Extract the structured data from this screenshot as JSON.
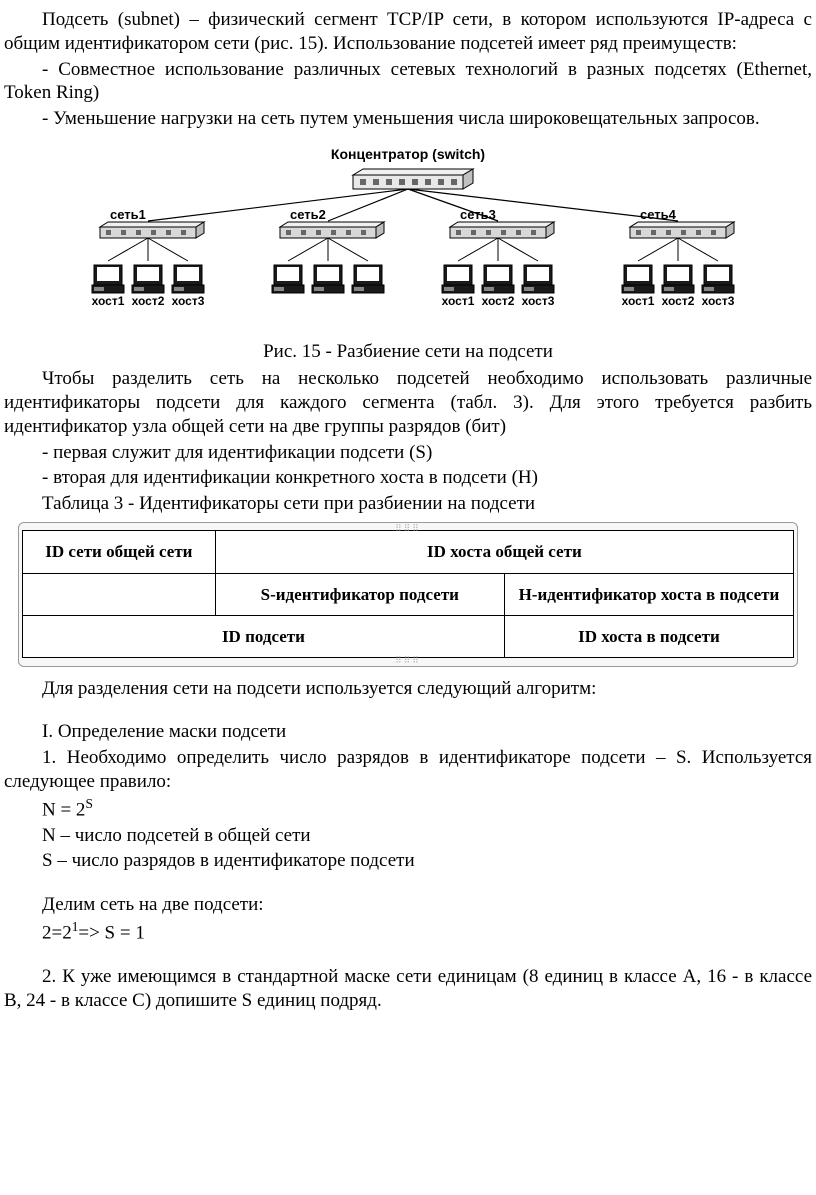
{
  "p1": "Подсеть (subnet) – физический сегмент TCP/IP сети, в котором используются IP-адреса с общим идентификатором сети (рис. 15). Использование подсетей имеет ряд преимуществ:",
  "b1": "- Совместное использование различных сетевых технологий в разных подсетях (Ethernet, Token Ring)",
  "b2": "- Уменьшение нагрузки на сеть путем уменьшения числа широковещательных запросов.",
  "diagram": {
    "title": "Концентратор (switch)",
    "nets": [
      "сеть1",
      "сеть2",
      "сеть3",
      "сеть4"
    ],
    "hosts": [
      "хост1",
      "хост2",
      "хост3"
    ],
    "hub_color": "#d8d8d8",
    "switch_color": "#e8e8e8",
    "monitor_color": "#1a1a1a",
    "screen_color": "#ffffff",
    "line_color": "#000000",
    "font_size_title": 14,
    "font_size_label": 13,
    "font_size_host": 12
  },
  "fig_caption": "Рис. 15 - Разбиение сети на подсети",
  "p2": "Чтобы разделить сеть на несколько подсетей необходимо использовать различные идентификаторы подсети для каждого сегмента (табл. 3). Для этого требуется разбить идентификатор узла общей сети на две группы разрядов (бит)",
  "b3": "- первая служит для идентификации подсети (S)",
  "b4": "- вторая для идентификации конкретного хоста в подсети (H)",
  "tbl_caption": "Таблица 3 - Идентификаторы сети при разбиении на подсети",
  "table": {
    "r1c1": "ID сети общей сети",
    "r1c2": "ID хоста общей сети",
    "r2c1": "",
    "r2c2": "S-идентификатор подсети",
    "r2c3": "H-идентификатор хоста в подсети",
    "r3c1": "ID подсети",
    "r3c2": "ID хоста в подсети"
  },
  "p3": "Для разделения сети на подсети используется следующий алгоритм:",
  "p4": "I. Определение маски подсети",
  "p5": "1. Необходимо определить число разрядов в идентификаторе подсети – S. Используется следующее правило:",
  "f1a": "N = 2",
  "f1b": "S",
  "p6": "N – число подсетей в общей сети",
  "p7": "S – число разрядов в идентификаторе подсети",
  "p8": "Делим сеть на две подсети:",
  "f2a": "2=2",
  "f2b": "1",
  "f2c": "=> S = 1",
  "p9": "2. К уже имеющимся в стандартной маске сети единицам (8 единиц в классе A, 16 - в классе B, 24 - в классе C) допишите S единиц подряд."
}
